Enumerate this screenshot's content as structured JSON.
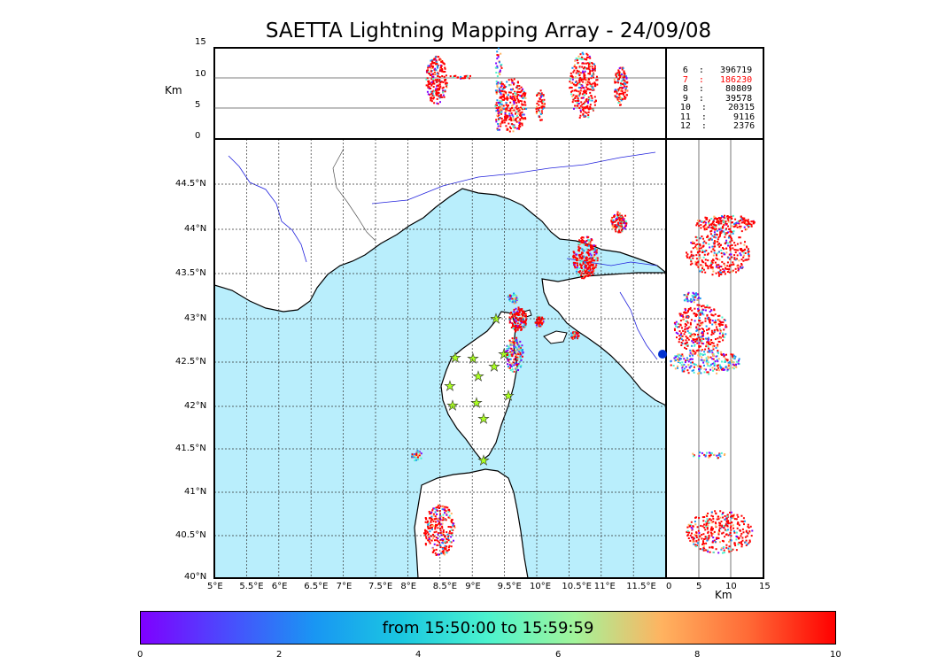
{
  "title": "SAETTA Lightning Mapping Array - 24/09/08",
  "altitude_panel": {
    "unit": "Km",
    "y_ticks": [
      "15",
      "10",
      "5",
      "0"
    ]
  },
  "map": {
    "lon_ticks": [
      "5°E",
      "5.5°E",
      "6°E",
      "6.5°E",
      "7°E",
      "7.5°E",
      "8°E",
      "8.5°E",
      "9°E",
      "9.5°E",
      "10°E",
      "10.5°E",
      "11°E",
      "11.5°E"
    ],
    "lat_ticks": [
      "44.5°N",
      "44°N",
      "43.5°N",
      "43°N",
      "42.5°N",
      "42°N",
      "41.5°N",
      "41°N",
      "40.5°N",
      "40°N"
    ],
    "sea_color": "#b9eefc",
    "land_color": "#ffffff",
    "river_color": "#2222dd"
  },
  "side_panel": {
    "unit": "Km",
    "x_ticks": [
      "0",
      "5",
      "10",
      "15"
    ]
  },
  "station_counts": [
    {
      "label": "6  :   396719",
      "color": "#000000"
    },
    {
      "label": "7  :   186230",
      "color": "#ff0000"
    },
    {
      "label": "8  :    80809",
      "color": "#000000"
    },
    {
      "label": "9  :    39578",
      "color": "#000000"
    },
    {
      "label": "10  :    20315",
      "color": "#000000"
    },
    {
      "label": "11  :     9116",
      "color": "#000000"
    },
    {
      "label": "12  :     2376",
      "color": "#000000"
    }
  ],
  "colorbar": {
    "label": "from 15:50:00 to 15:59:59",
    "ticks": [
      "0",
      "2",
      "4",
      "6",
      "8",
      "10"
    ],
    "colors": [
      "#7f00ff",
      "#1996f3",
      "#4cf3ce",
      "#ffb360",
      "#ff0000"
    ]
  }
}
